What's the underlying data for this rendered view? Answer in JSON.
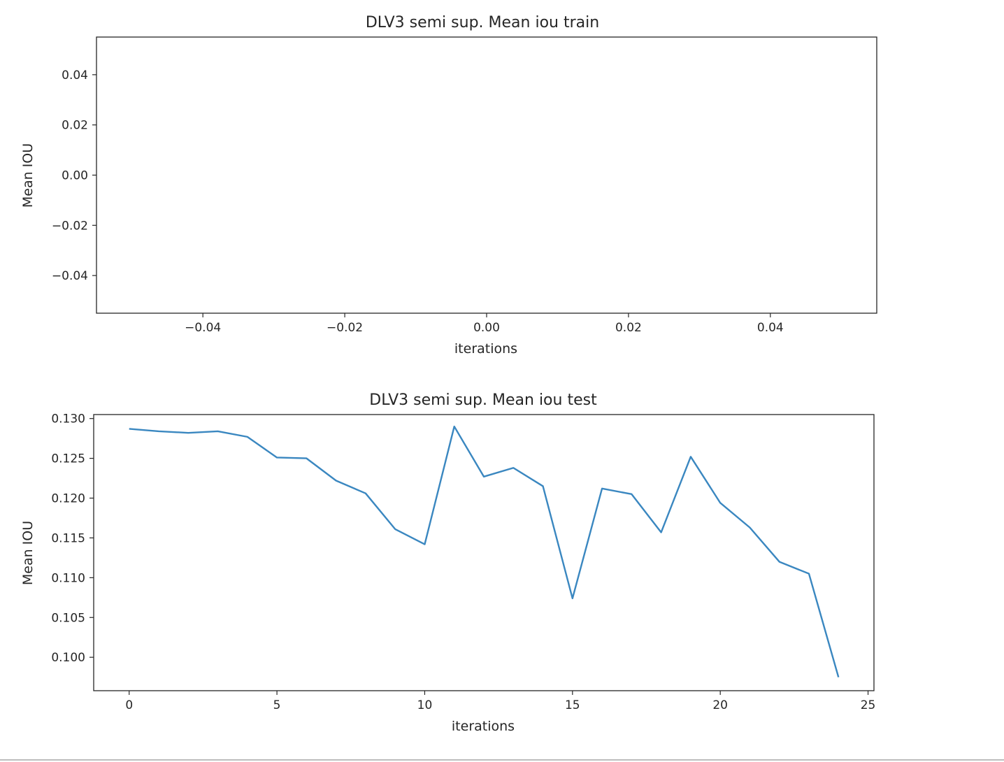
{
  "chart_data": [
    {
      "type": "line",
      "title": "DLV3 semi sup. Mean iou train",
      "xlabel": "iterations",
      "ylabel": "Mean IOU",
      "xlim": [
        -0.055,
        0.055
      ],
      "ylim": [
        -0.055,
        0.055
      ],
      "xticks": [
        -0.04,
        -0.02,
        0.0,
        0.02,
        0.04
      ],
      "xtick_labels": [
        "−0.04",
        "−0.02",
        "0.00",
        "0.02",
        "0.04"
      ],
      "yticks": [
        0.04,
        0.02,
        0.0,
        -0.02,
        -0.04
      ],
      "ytick_labels": [
        "0.04",
        "0.02",
        "0.00",
        "−0.02",
        "−0.04"
      ],
      "grid": false,
      "series": [
        {
          "x": [],
          "values": [],
          "color": "#3a87c0"
        }
      ]
    },
    {
      "type": "line",
      "title": "DLV3 semi sup. Mean iou test",
      "xlabel": "iterations",
      "ylabel": "Mean IOU",
      "xlim": [
        -1.2,
        25.2
      ],
      "ylim": [
        0.0958,
        0.1305
      ],
      "xticks": [
        0,
        5,
        10,
        15,
        20,
        25
      ],
      "xtick_labels": [
        "0",
        "5",
        "10",
        "15",
        "20",
        "25"
      ],
      "yticks": [
        0.13,
        0.125,
        0.12,
        0.115,
        0.11,
        0.105,
        0.1
      ],
      "ytick_labels": [
        "0.130",
        "0.125",
        "0.120",
        "0.115",
        "0.110",
        "0.105",
        "0.100"
      ],
      "grid": false,
      "series": [
        {
          "x": [
            0,
            1,
            2,
            3,
            4,
            5,
            6,
            7,
            8,
            9,
            10,
            11,
            12,
            13,
            14,
            15,
            16,
            17,
            18,
            19,
            20,
            21,
            22,
            23,
            24
          ],
          "values": [
            0.1287,
            0.1284,
            0.1282,
            0.1284,
            0.1277,
            0.1251,
            0.125,
            0.1222,
            0.1206,
            0.1161,
            0.1142,
            0.129,
            0.1227,
            0.1238,
            0.1215,
            0.1074,
            0.1212,
            0.1205,
            0.1157,
            0.1252,
            0.1194,
            0.1163,
            0.112,
            0.1105,
            0.0975
          ],
          "color": "#3a87c0"
        }
      ]
    }
  ]
}
